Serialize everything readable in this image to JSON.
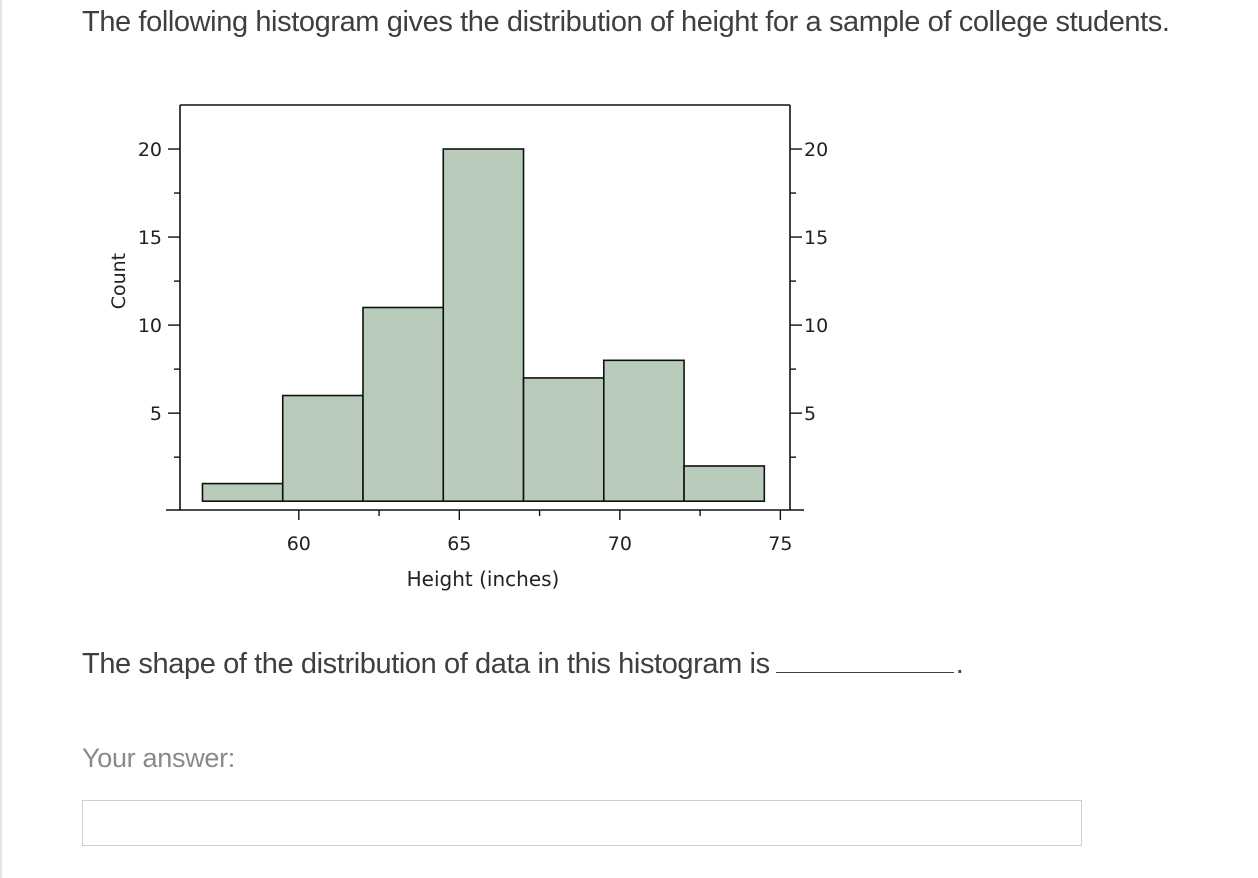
{
  "question": {
    "text": "The following histogram gives the distribution of height for a sample of college students.",
    "prompt": "The shape of the distribution of data in this histogram is",
    "prompt_end": "."
  },
  "answer": {
    "label": "Your answer:",
    "value": "",
    "placeholder": ""
  },
  "chart_data": {
    "type": "bar",
    "title": "",
    "xlabel": "Height (inches)",
    "ylabel": "Count",
    "bin_edges": [
      57,
      59.5,
      62,
      64.5,
      67,
      69.5,
      72,
      74.5
    ],
    "values": [
      1,
      6,
      11,
      20,
      7,
      8,
      2
    ],
    "xlim": [
      56.3,
      75.3
    ],
    "ylim": [
      -0.5,
      22.5
    ],
    "x_ticks": [
      60,
      65,
      70,
      75
    ],
    "x_minor_ticks": [
      62.5,
      67.5,
      72.5
    ],
    "y_ticks": [
      5,
      10,
      15,
      20
    ],
    "y_minor_ticks": [
      2.5,
      7.5,
      12.5,
      17.5
    ],
    "right_axis_ticks": [
      5,
      10,
      15,
      20
    ],
    "bar_color": "#b9cbba",
    "grid": false,
    "legend": "none"
  }
}
